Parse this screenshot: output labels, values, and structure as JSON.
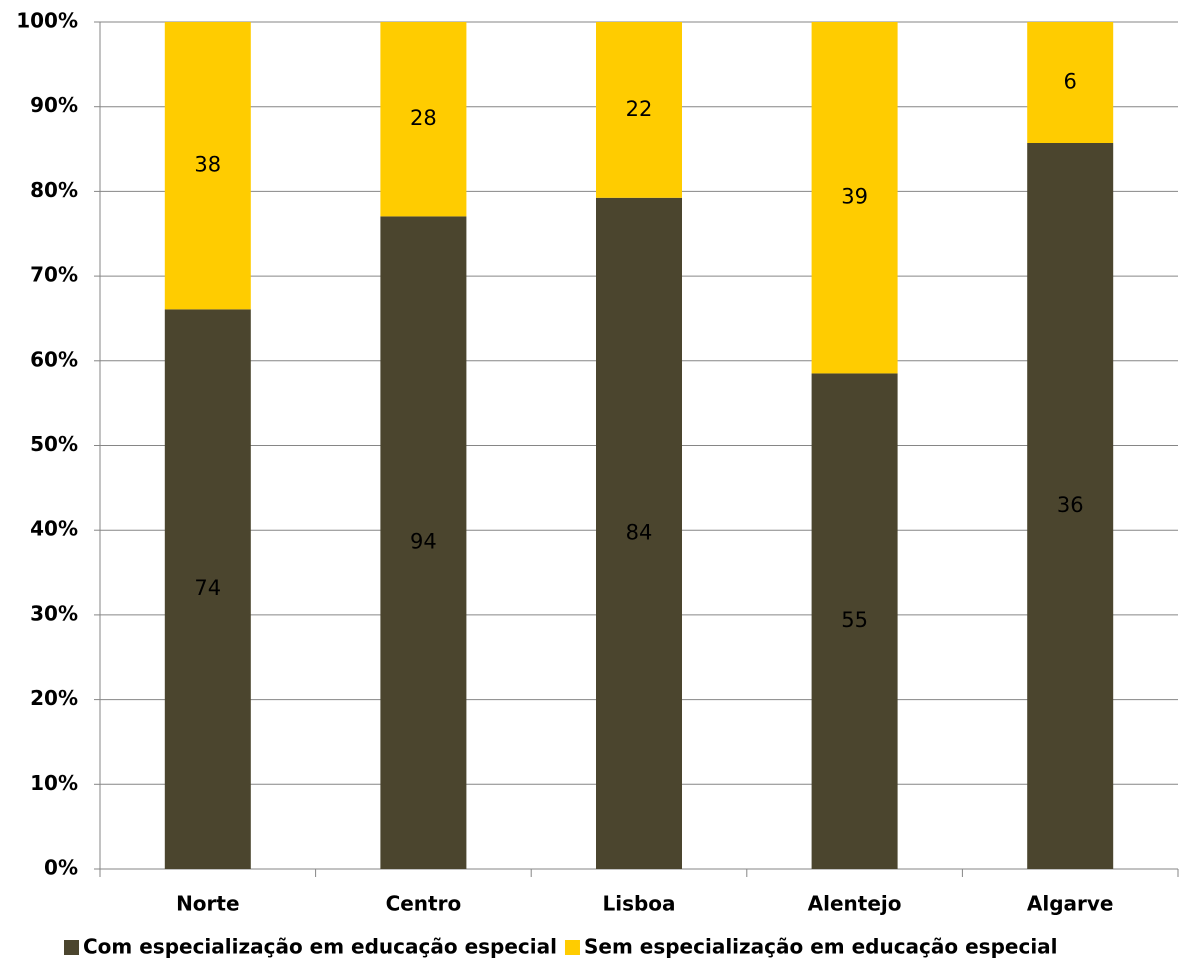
{
  "chart_data": {
    "type": "bar",
    "stacked": "percent",
    "categories": [
      "Norte",
      "Centro",
      "Lisboa",
      "Alentejo",
      "Algarve"
    ],
    "series": [
      {
        "name": "Com especialização em educação especial",
        "color": "#4b452e",
        "values": [
          74,
          94,
          84,
          55,
          36
        ]
      },
      {
        "name": "Sem especialização em educação especial",
        "color": "#ffcc00",
        "values": [
          38,
          28,
          22,
          39,
          6
        ]
      }
    ],
    "ylim": [
      0,
      100
    ],
    "yticks": [
      {
        "value": 0,
        "label": "0%"
      },
      {
        "value": 10,
        "label": "10%"
      },
      {
        "value": 20,
        "label": "20%"
      },
      {
        "value": 30,
        "label": "30%"
      },
      {
        "value": 40,
        "label": "40%"
      },
      {
        "value": 50,
        "label": "50%"
      },
      {
        "value": 60,
        "label": "60%"
      },
      {
        "value": 70,
        "label": "70%"
      },
      {
        "value": 80,
        "label": "80%"
      },
      {
        "value": 90,
        "label": "90%"
      },
      {
        "value": 100,
        "label": "100%"
      }
    ],
    "grid": true,
    "legend": "bottom"
  }
}
